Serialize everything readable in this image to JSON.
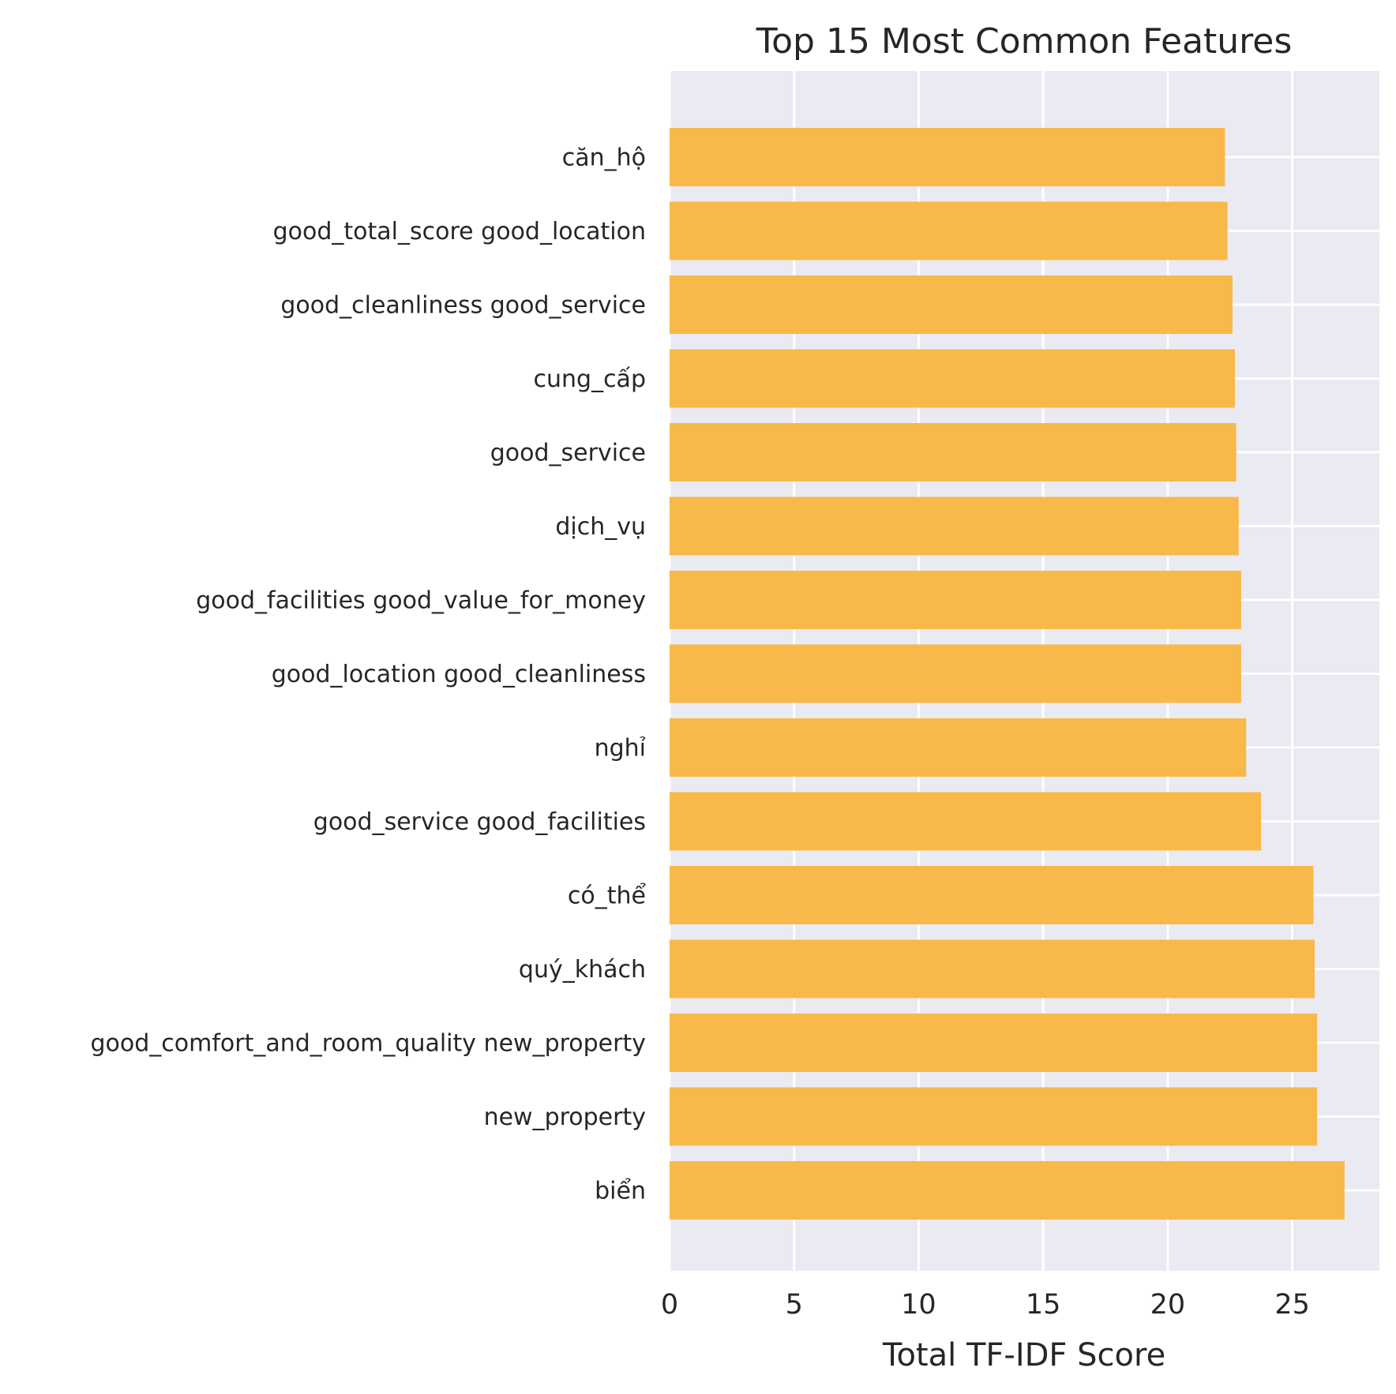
{
  "chart_data": {
    "type": "bar",
    "orientation": "horizontal",
    "title": "Top 15 Most Common Features",
    "xlabel": "Total TF-IDF Score",
    "ylabel": "",
    "xlim": [
      0,
      28.5
    ],
    "xticks": [
      "0",
      "5",
      "10",
      "15",
      "20",
      "25"
    ],
    "categories": [
      "căn_hộ",
      "good_total_score good_location",
      "good_cleanliness good_service",
      "cung_cấp",
      "good_service",
      "dịch_vụ",
      "good_facilities good_value_for_money",
      "good_location good_cleanliness",
      "nghỉ",
      "good_service good_facilities",
      "có_thể",
      "quý_khách",
      "good_comfort_and_room_quality new_property",
      "new_property",
      "biển"
    ],
    "values": [
      22.3,
      22.4,
      22.6,
      22.7,
      22.75,
      22.85,
      22.95,
      22.95,
      23.15,
      23.75,
      25.85,
      25.9,
      26.0,
      26.0,
      27.1
    ],
    "grid": true,
    "legend": "none",
    "colors": {
      "bar": "#f8b84a",
      "plot_background": "#eaeaf2",
      "gridline": "#ffffff",
      "text": "#262626"
    }
  }
}
